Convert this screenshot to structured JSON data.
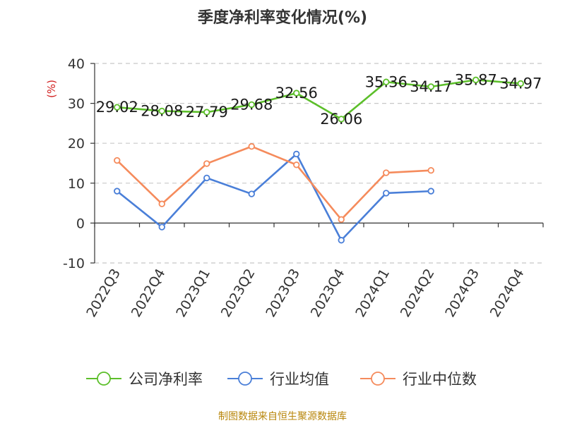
{
  "title": "季度净利率变化情况(%)",
  "source": "制图数据来自恒生聚源数据库",
  "chart_data": {
    "type": "line",
    "title": "季度净利率变化情况(%)",
    "ylabel": "(%)",
    "xlabel": "",
    "ylim": [
      -10,
      40
    ],
    "yticks": [
      -10,
      0,
      10,
      20,
      30,
      40
    ],
    "grid": true,
    "legend_position": "bottom",
    "categories": [
      "2022Q3",
      "2022Q4",
      "2023Q1",
      "2023Q2",
      "2023Q3",
      "2023Q4",
      "2024Q1",
      "2024Q2",
      "2024Q3",
      "2024Q4"
    ],
    "series": [
      {
        "name": "公司净利率",
        "color": "#5cbf2a",
        "values": [
          29.02,
          28.08,
          27.79,
          29.68,
          32.56,
          26.06,
          35.36,
          34.17,
          35.87,
          34.97
        ],
        "show_labels": true
      },
      {
        "name": "行业均值",
        "color": "#4a7fd8",
        "values": [
          8.0,
          -1.0,
          11.3,
          7.3,
          17.3,
          -4.3,
          7.5,
          8.0,
          null,
          null
        ],
        "show_labels": false
      },
      {
        "name": "行业中位数",
        "color": "#f58b5c",
        "values": [
          15.7,
          4.8,
          14.9,
          19.2,
          14.6,
          0.9,
          12.6,
          13.2,
          null,
          null
        ],
        "show_labels": false
      }
    ]
  }
}
